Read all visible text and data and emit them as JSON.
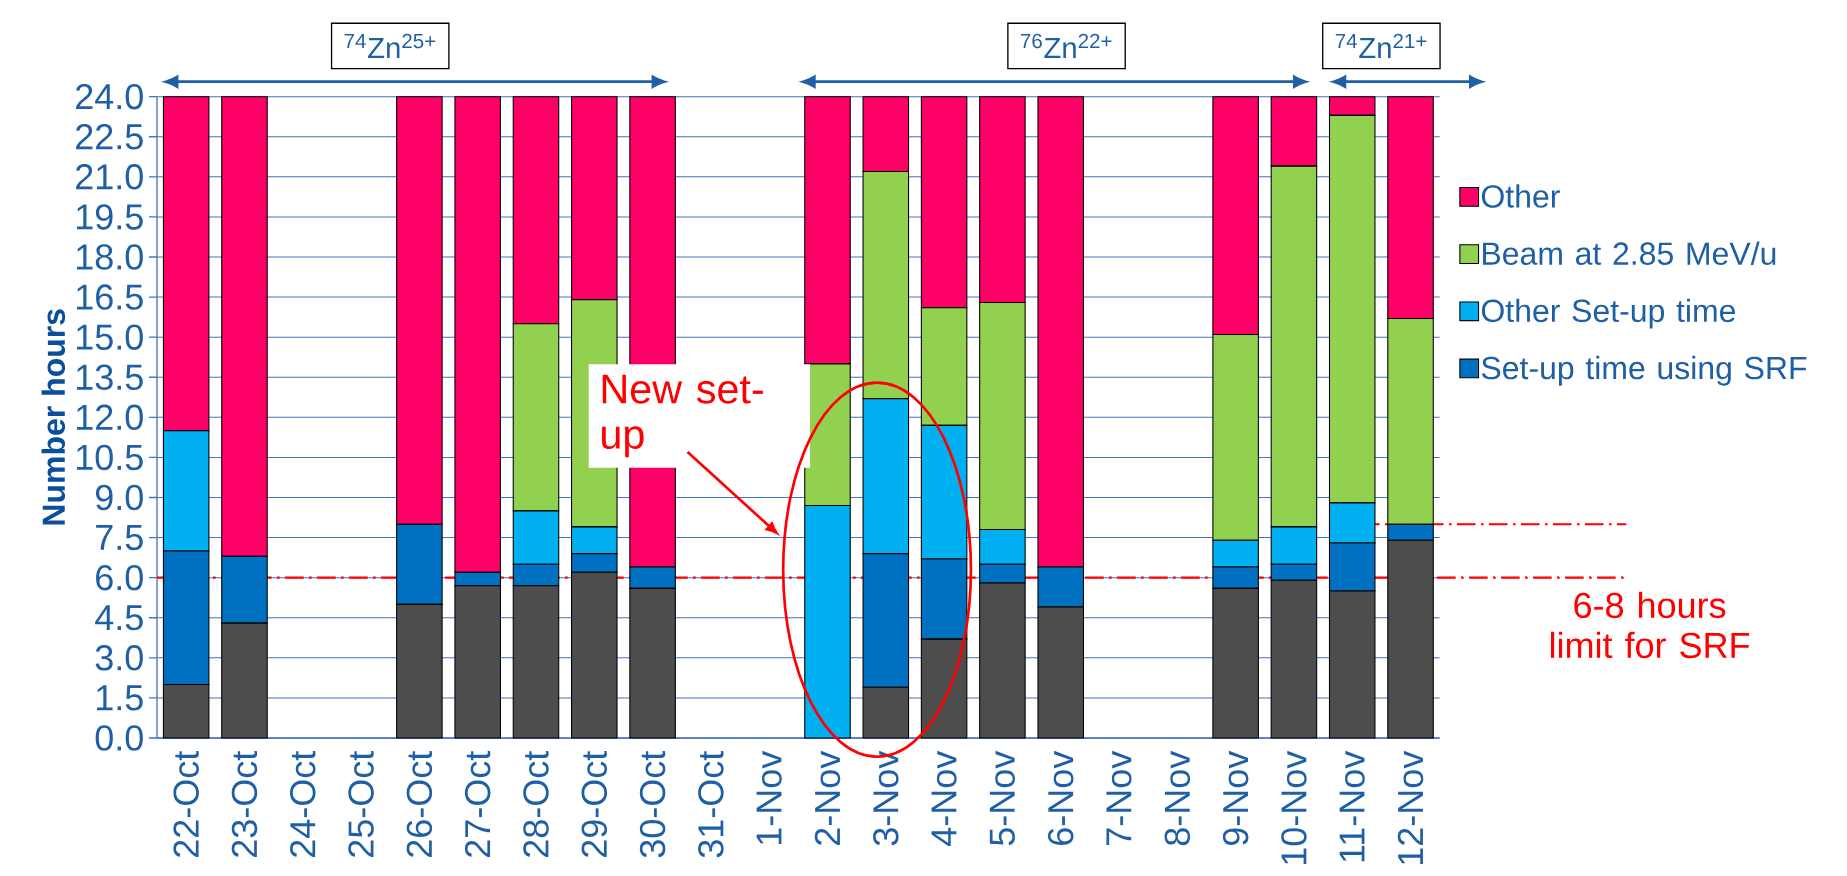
{
  "chart_data": {
    "type": "bar",
    "stacked": true,
    "ylabel": "Number hours",
    "categories": [
      "22-Oct",
      "23-Oct",
      "24-Oct",
      "25-Oct",
      "26-Oct",
      "27-Oct",
      "28-Oct",
      "29-Oct",
      "30-Oct",
      "31-Oct",
      "1-Nov",
      "2-Nov",
      "3-Nov",
      "4-Nov",
      "5-Nov",
      "6-Nov",
      "7-Nov",
      "8-Nov",
      "9-Nov",
      "10-Nov",
      "11-Nov",
      "12-Nov"
    ],
    "series": [
      {
        "color": "#4d4d4d",
        "values": [
          2.0,
          4.3,
          null,
          null,
          5.0,
          5.7,
          5.7,
          6.2,
          5.6,
          null,
          null,
          0,
          1.9,
          3.7,
          5.8,
          4.9,
          null,
          null,
          5.6,
          5.9,
          5.5,
          7.4
        ]
      },
      {
        "name": "Set-up time using SRF",
        "color": "#0070c0",
        "values": [
          5.0,
          2.5,
          null,
          null,
          3.0,
          0.5,
          0.8,
          0.7,
          0.8,
          null,
          null,
          0,
          5.0,
          3.0,
          0.7,
          1.5,
          null,
          null,
          0.8,
          0.6,
          1.8,
          0.6
        ]
      },
      {
        "name": "Other Set-up time",
        "color": "#00b0f0",
        "values": [
          4.5,
          0,
          null,
          null,
          0,
          0,
          2.0,
          1.0,
          0,
          null,
          null,
          8.7,
          5.8,
          5.0,
          1.3,
          0,
          null,
          null,
          1.0,
          1.4,
          1.5,
          0
        ]
      },
      {
        "name": "Beam at 2.85 MeV/u",
        "color": "#92d050",
        "values": [
          0,
          0,
          null,
          null,
          0,
          0,
          7.0,
          8.5,
          0,
          null,
          null,
          5.3,
          8.5,
          4.4,
          8.5,
          0,
          null,
          null,
          7.7,
          13.5,
          14.5,
          7.7
        ]
      },
      {
        "name": "Other",
        "color": "#ff0066",
        "values": [
          12.5,
          17.2,
          null,
          null,
          16.0,
          17.8,
          8.5,
          7.6,
          17.6,
          null,
          null,
          10.0,
          2.8,
          7.9,
          7.7,
          17.6,
          null,
          null,
          8.9,
          2.6,
          0.7,
          8.3
        ]
      }
    ],
    "ylim": [
      0,
      24
    ],
    "yticks": [
      {
        "value": 0,
        "label": "0.0"
      },
      {
        "value": 1.5,
        "label": "1.5"
      },
      {
        "value": 3,
        "label": "3.0"
      },
      {
        "value": 4.5,
        "label": "4.5"
      },
      {
        "value": 6,
        "label": "6.0"
      },
      {
        "value": 7.5,
        "label": "7.5"
      },
      {
        "value": 9,
        "label": "9.0"
      },
      {
        "value": 10.5,
        "label": "10.5"
      },
      {
        "value": 12,
        "label": "12.0"
      },
      {
        "value": 13.5,
        "label": "13.5"
      },
      {
        "value": 15,
        "label": "15.0"
      },
      {
        "value": 16.5,
        "label": "16.5"
      },
      {
        "value": 18,
        "label": "18.0"
      },
      {
        "value": 19.5,
        "label": "19.5"
      },
      {
        "value": 21,
        "label": "21.0"
      },
      {
        "value": 22.5,
        "label": "22.5"
      },
      {
        "value": 24,
        "label": "24.0"
      }
    ],
    "grid": "y",
    "legend": "right",
    "ref_lines": [
      {
        "axis": "y",
        "value": 6,
        "label": "6-8 hours limit for SRF",
        "color": "#ff0000",
        "line_style": "dashdot"
      },
      {
        "axis": "y",
        "value": 8,
        "color": "#ff0000",
        "line_style": "dashdot"
      }
    ],
    "annotations": [
      "$^{74}$Zn$^{25+}$",
      "$^{76}$Zn$^{22+}$",
      "$^{74}$Zn$^{21+}$",
      "New set-up"
    ]
  }
}
